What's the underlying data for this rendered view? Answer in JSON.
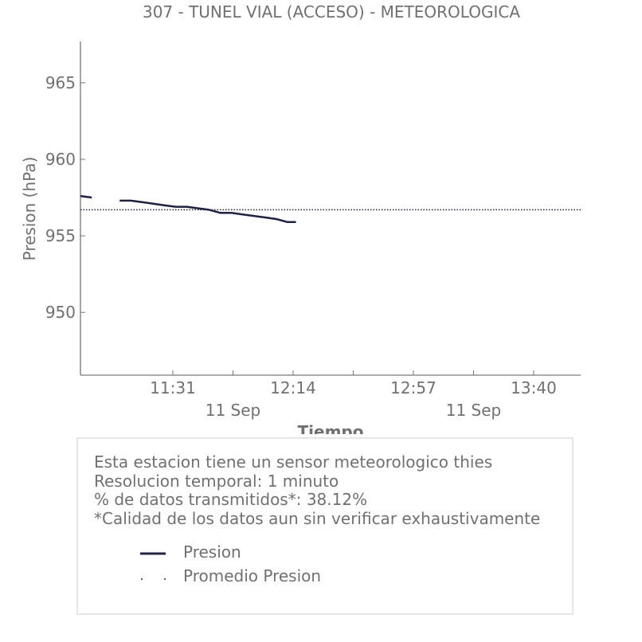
{
  "chart_data": {
    "type": "line",
    "title": "307 - TUNEL VIAL (ACCESO) - METEOROLOGICA",
    "xlabel": "Tiempo",
    "ylabel": "Presion (hPa)",
    "ylim": [
      945.9,
      967.7
    ],
    "y_ticks": [
      950,
      955,
      960,
      965
    ],
    "x_ticks": [
      {
        "time": "11:31",
        "date": "11 Sep"
      },
      {
        "time": "12:14",
        "date": "11 Sep"
      },
      {
        "time": "12:57",
        "date": "11 Sep"
      },
      {
        "time": "13:40",
        "date": "11 Sep"
      }
    ],
    "date_labels": [
      "11 Sep",
      "11 Sep"
    ],
    "grid": false,
    "series": [
      {
        "name": "Presion",
        "color": "#1f2340",
        "style": "solid",
        "segments": [
          [
            [
              "10:58",
              957.6
            ],
            [
              "11:02",
              957.5
            ]
          ],
          [
            [
              "11:12",
              957.3
            ],
            [
              "11:16",
              957.3
            ],
            [
              "11:20",
              957.2
            ],
            [
              "11:24",
              957.1
            ],
            [
              "11:28",
              957.0
            ],
            [
              "11:32",
              956.9
            ],
            [
              "11:36",
              956.9
            ],
            [
              "11:40",
              956.8
            ],
            [
              "11:44",
              956.7
            ],
            [
              "11:48",
              956.5
            ],
            [
              "11:52",
              956.5
            ],
            [
              "11:56",
              956.4
            ],
            [
              "12:00",
              956.3
            ],
            [
              "12:04",
              956.2
            ],
            [
              "12:08",
              956.1
            ],
            [
              "12:12",
              955.9
            ],
            [
              "12:15",
              955.9
            ]
          ]
        ]
      },
      {
        "name": "Promedio Presion",
        "color": "#1f2340",
        "style": "dotted",
        "constant": 956.7
      }
    ]
  },
  "info": {
    "lines": [
      "Esta estacion tiene un sensor meteorologico thies",
      "Resolucion temporal: 1 minuto",
      "% de datos transmitidos*: 38.12%",
      "*Calidad de los datos aun sin verificar exhaustivamente"
    ],
    "legend": [
      {
        "label": "Presion",
        "style": "solid"
      },
      {
        "label": "Promedio Presion",
        "style": "dotted"
      }
    ]
  }
}
